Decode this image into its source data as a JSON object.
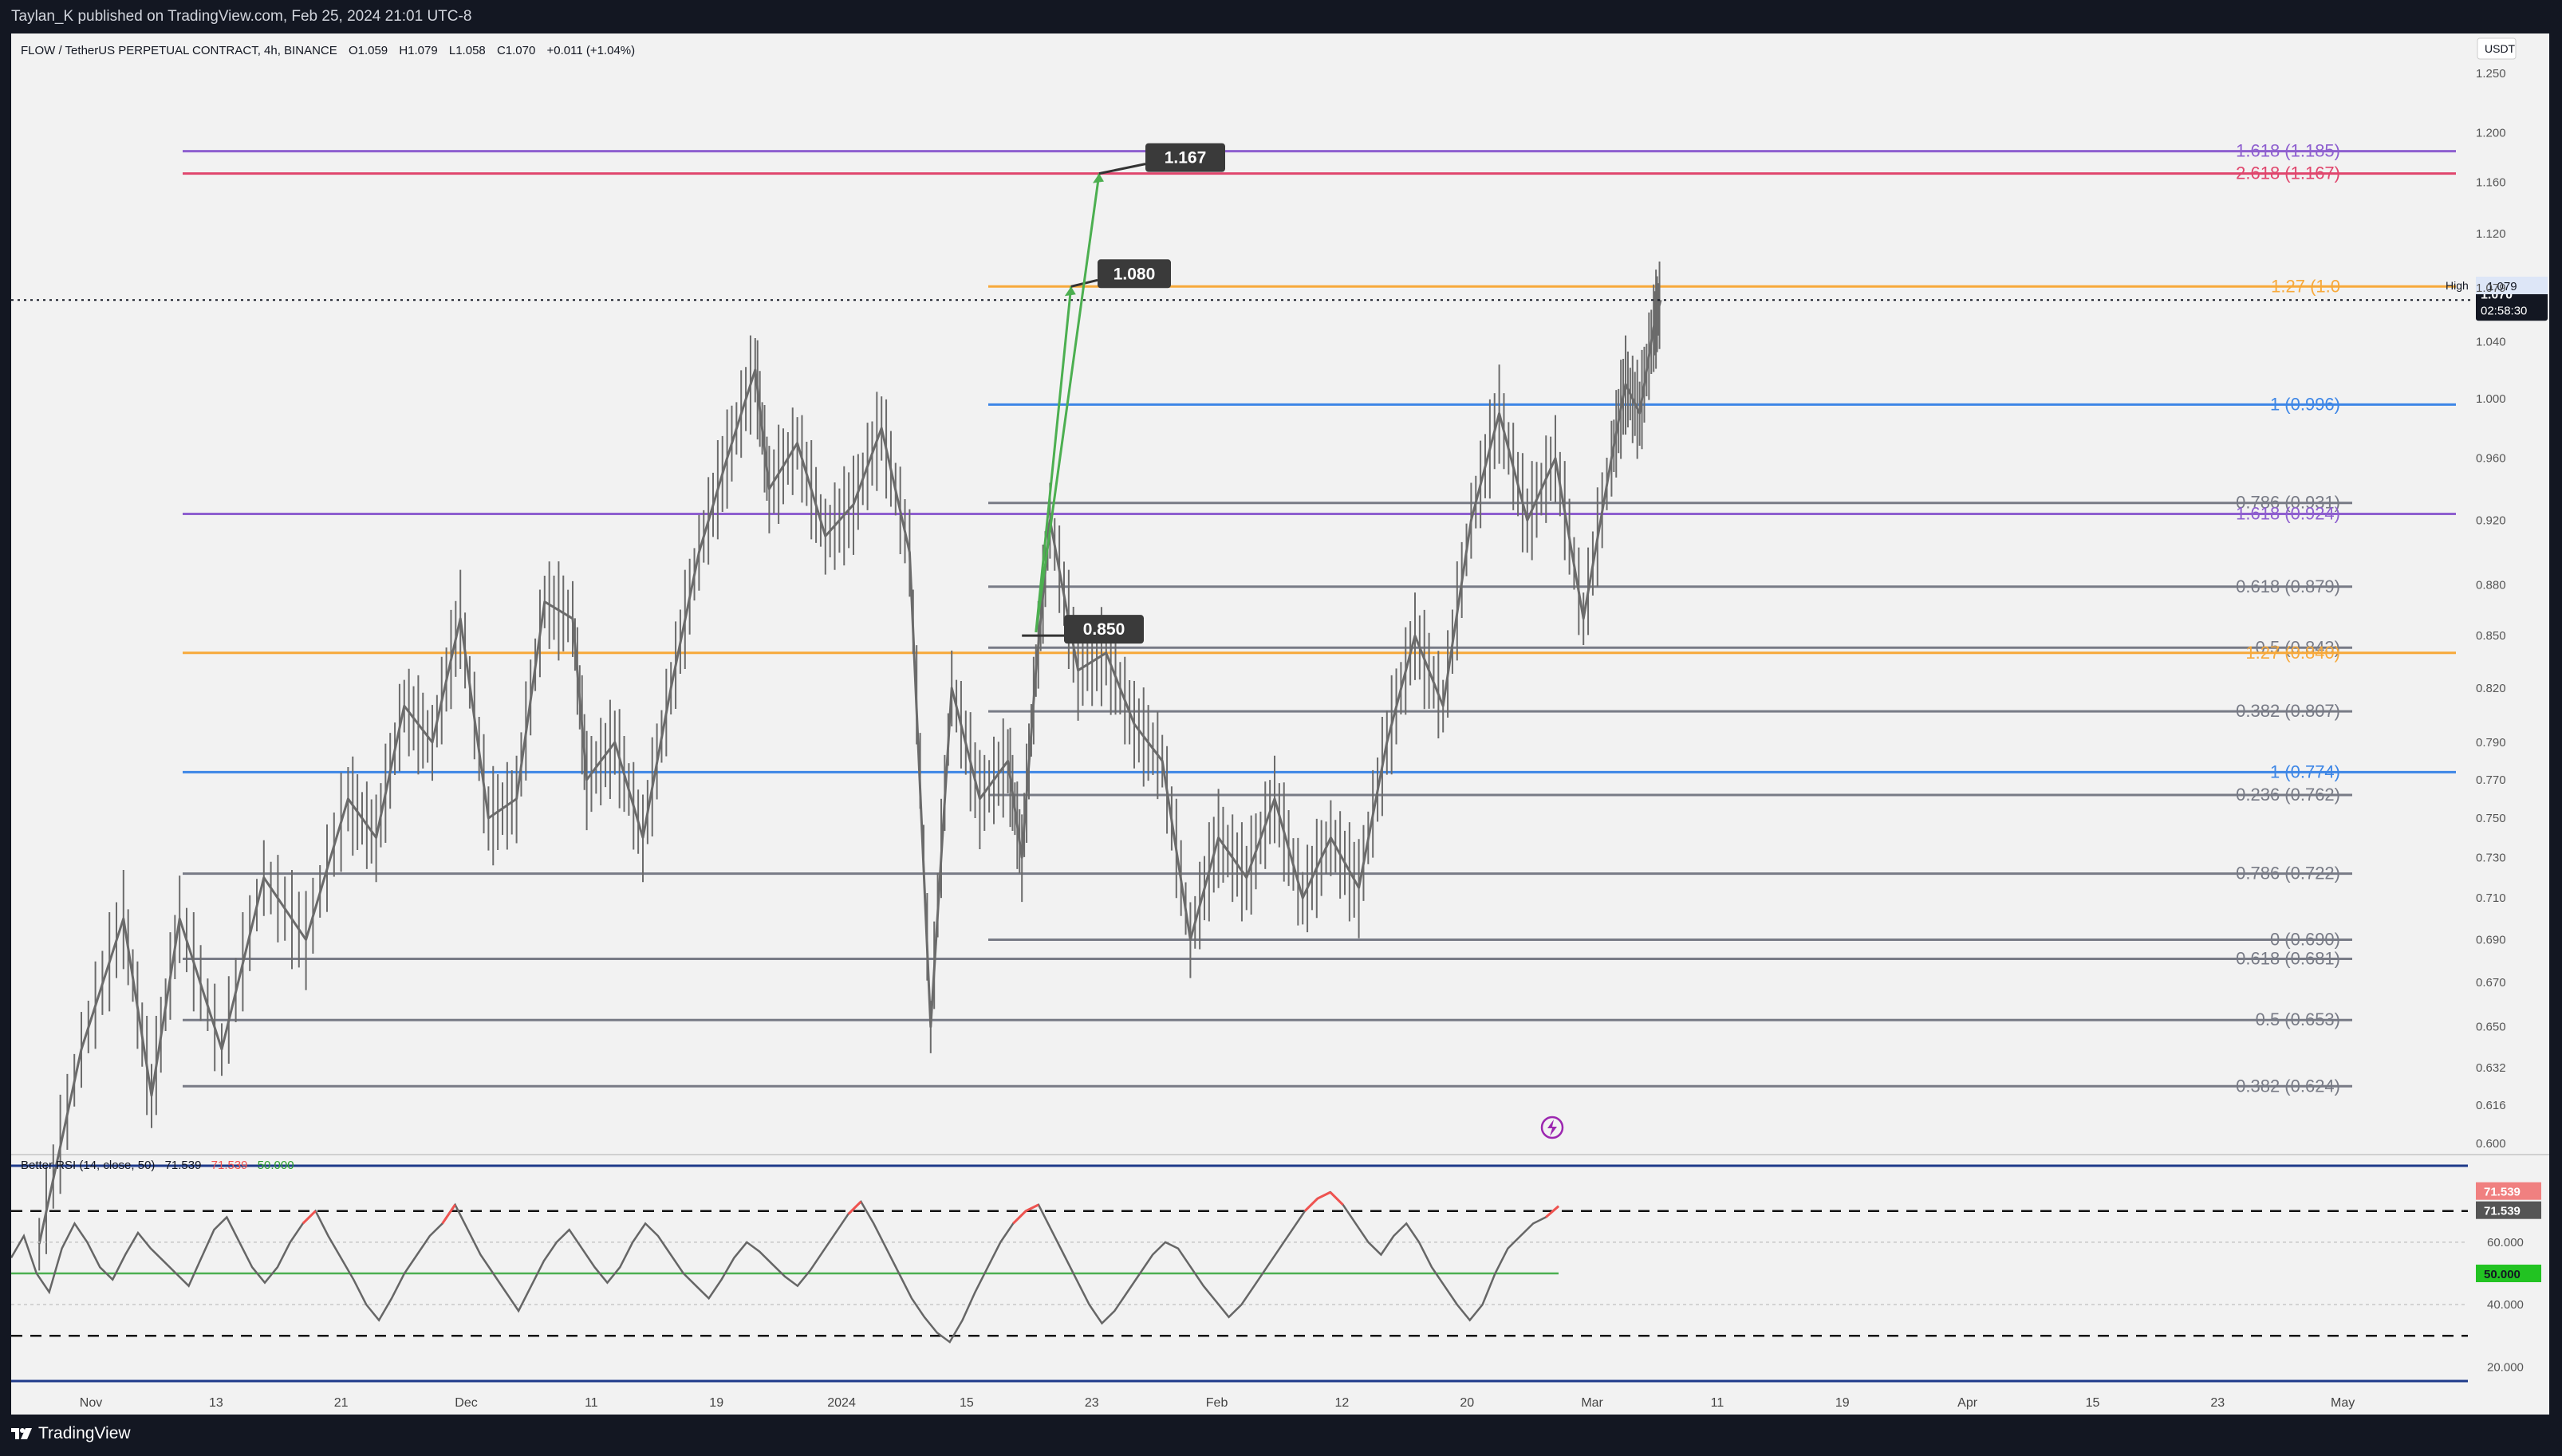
{
  "header": {
    "published": "Taylan_K published on TradingView.com, Feb 25, 2024 21:01 UTC-8"
  },
  "footer": {
    "brand": "TradingView"
  },
  "legend": {
    "symbol": "FLOW / TetherUS PERPETUAL CONTRACT, 4h, BINANCE",
    "open": "O1.059",
    "high": "H1.079",
    "low": "L1.058",
    "close": "C1.070",
    "change": "+0.011 (+1.04%)"
  },
  "rsi_legend": {
    "name": "Better RSI (14, close, 50)",
    "v1": "71.539",
    "v2": "71.539",
    "v3": "50.000"
  },
  "colors": {
    "bg": "#f2f2f2",
    "candle": "#6b6b6b",
    "orange": "#f7a93b",
    "blue": "#3d86e6",
    "purple": "#8e5fcf",
    "pink": "#e0466d",
    "gray": "#787b86",
    "arrow": "#4caf50",
    "rsi_ob": "#ef5350",
    "rsi_mid": "#4caf50",
    "navy": "#1e3a8a"
  },
  "chart_data": [
    {
      "type": "line",
      "series_kind": "price",
      "currency": "USDT",
      "y_axis_ticks": [
        "1.250",
        "1.200",
        "1.160",
        "1.120",
        "1.079",
        "1.040",
        "1.000",
        "0.960",
        "0.920",
        "0.880",
        "0.850",
        "0.820",
        "0.790",
        "0.770",
        "0.750",
        "0.730",
        "0.710",
        "0.690",
        "0.670",
        "0.650",
        "0.632",
        "0.616",
        "0.600"
      ],
      "x_axis_ticks": [
        "Nov",
        "13",
        "21",
        "Dec",
        "11",
        "19",
        "2024",
        "15",
        "23",
        "Feb",
        "12",
        "20",
        "Mar",
        "11",
        "19",
        "Apr",
        "15",
        "23",
        "May"
      ],
      "ylim": [
        0.6,
        1.25
      ],
      "last_price": 1.07,
      "countdown": "02:58:30",
      "high_label": "High",
      "high_value": "1.079",
      "path": [
        {
          "t": 2,
          "v": 0.56
        },
        {
          "t": 5,
          "v": 0.64
        },
        {
          "t": 8,
          "v": 0.7
        },
        {
          "t": 10,
          "v": 0.62
        },
        {
          "t": 12,
          "v": 0.7
        },
        {
          "t": 15,
          "v": 0.64
        },
        {
          "t": 18,
          "v": 0.72
        },
        {
          "t": 21,
          "v": 0.69
        },
        {
          "t": 24,
          "v": 0.76
        },
        {
          "t": 26,
          "v": 0.74
        },
        {
          "t": 28,
          "v": 0.81
        },
        {
          "t": 30,
          "v": 0.79
        },
        {
          "t": 32,
          "v": 0.86
        },
        {
          "t": 34,
          "v": 0.75
        },
        {
          "t": 36,
          "v": 0.76
        },
        {
          "t": 38,
          "v": 0.87
        },
        {
          "t": 40,
          "v": 0.86
        },
        {
          "t": 41,
          "v": 0.77
        },
        {
          "t": 43,
          "v": 0.79
        },
        {
          "t": 45,
          "v": 0.74
        },
        {
          "t": 47,
          "v": 0.82
        },
        {
          "t": 49,
          "v": 0.9
        },
        {
          "t": 51,
          "v": 0.96
        },
        {
          "t": 53,
          "v": 1.02
        },
        {
          "t": 54,
          "v": 0.94
        },
        {
          "t": 56,
          "v": 0.97
        },
        {
          "t": 58,
          "v": 0.91
        },
        {
          "t": 60,
          "v": 0.93
        },
        {
          "t": 62,
          "v": 0.98
        },
        {
          "t": 64,
          "v": 0.9
        },
        {
          "t": 65.5,
          "v": 0.65
        },
        {
          "t": 67,
          "v": 0.82
        },
        {
          "t": 69,
          "v": 0.76
        },
        {
          "t": 71,
          "v": 0.78
        },
        {
          "t": 72,
          "v": 0.73
        },
        {
          "t": 73,
          "v": 0.83
        },
        {
          "t": 74,
          "v": 0.92
        },
        {
          "t": 76,
          "v": 0.83
        },
        {
          "t": 78,
          "v": 0.84
        },
        {
          "t": 80,
          "v": 0.8
        },
        {
          "t": 82,
          "v": 0.78
        },
        {
          "t": 84,
          "v": 0.69
        },
        {
          "t": 86,
          "v": 0.74
        },
        {
          "t": 88,
          "v": 0.72
        },
        {
          "t": 90,
          "v": 0.76
        },
        {
          "t": 92,
          "v": 0.71
        },
        {
          "t": 94,
          "v": 0.74
        },
        {
          "t": 96,
          "v": 0.715
        },
        {
          "t": 98,
          "v": 0.79
        },
        {
          "t": 100,
          "v": 0.85
        },
        {
          "t": 102,
          "v": 0.81
        },
        {
          "t": 104,
          "v": 0.92
        },
        {
          "t": 106,
          "v": 0.99
        },
        {
          "t": 108,
          "v": 0.92
        },
        {
          "t": 110,
          "v": 0.96
        },
        {
          "t": 112,
          "v": 0.86
        },
        {
          "t": 114,
          "v": 0.96
        },
        {
          "t": 115,
          "v": 1.01
        },
        {
          "t": 116,
          "v": 0.99
        },
        {
          "t": 117,
          "v": 1.05
        },
        {
          "t": 117.5,
          "v": 1.07
        }
      ],
      "lines": [
        {
          "label": "1.618 (1.185)",
          "value": 1.185,
          "color": "purple"
        },
        {
          "label": "2.618 (1.167)",
          "value": 1.167,
          "color": "pink"
        },
        {
          "label": "1.27 (1.0",
          "value": 1.08,
          "color": "orange"
        },
        {
          "label": "1 (0.996)",
          "value": 0.996,
          "color": "blue"
        },
        {
          "label": "0.786 (0.931)",
          "value": 0.931,
          "color": "gray"
        },
        {
          "label": "1.618 (0.924)",
          "value": 0.924,
          "color": "purple"
        },
        {
          "label": "0.618 (0.879)",
          "value": 0.879,
          "color": "gray"
        },
        {
          "label": "0.5 (0.843)",
          "value": 0.843,
          "color": "gray"
        },
        {
          "label": "1.27 (0.840)",
          "value": 0.84,
          "color": "orange"
        },
        {
          "label": "0.382 (0.807)",
          "value": 0.807,
          "color": "gray"
        },
        {
          "label": "1 (0.774)",
          "value": 0.774,
          "color": "blue"
        },
        {
          "label": "0.236 (0.762)",
          "value": 0.762,
          "color": "gray"
        },
        {
          "label": "0.786 (0.722)",
          "value": 0.722,
          "color": "gray"
        },
        {
          "label": "0 (0.690)",
          "value": 0.69,
          "color": "gray"
        },
        {
          "label": "0.618 (0.681)",
          "value": 0.681,
          "color": "gray"
        },
        {
          "label": "0.5 (0.653)",
          "value": 0.653,
          "color": "gray"
        },
        {
          "label": "0.382 (0.624)",
          "value": 0.624,
          "color": "gray"
        }
      ],
      "targets": [
        {
          "label": "0.850",
          "value": 0.85
        },
        {
          "label": "1.080",
          "value": 1.08
        },
        {
          "label": "1.167",
          "value": 1.167
        }
      ]
    },
    {
      "type": "line",
      "series_kind": "rsi",
      "name": "Better RSI",
      "y_axis_ticks": [
        "60.000",
        "40.000",
        "20.000"
      ],
      "ylim": [
        15,
        85
      ],
      "overbought": 70,
      "oversold": 30,
      "midline": 50,
      "values": [
        55,
        62,
        50,
        44,
        58,
        66,
        60,
        52,
        48,
        56,
        63,
        58,
        54,
        50,
        46,
        55,
        64,
        68,
        60,
        52,
        47,
        52,
        60,
        66,
        70,
        62,
        55,
        48,
        40,
        35,
        42,
        50,
        56,
        62,
        66,
        72,
        64,
        56,
        50,
        44,
        38,
        46,
        54,
        60,
        64,
        58,
        52,
        47,
        52,
        60,
        66,
        62,
        56,
        50,
        46,
        42,
        48,
        55,
        60,
        57,
        53,
        49,
        46,
        51,
        57,
        63,
        69,
        73,
        66,
        58,
        50,
        42,
        36,
        31,
        28,
        35,
        44,
        52,
        60,
        66,
        70,
        72,
        64,
        56,
        48,
        40,
        34,
        38,
        44,
        50,
        56,
        60,
        58,
        52,
        46,
        41,
        36,
        40,
        46,
        52,
        58,
        64,
        70,
        74,
        76,
        72,
        66,
        60,
        56,
        62,
        66,
        60,
        52,
        46,
        40,
        35,
        40,
        50,
        58,
        62,
        66,
        68,
        71.539
      ]
    }
  ]
}
